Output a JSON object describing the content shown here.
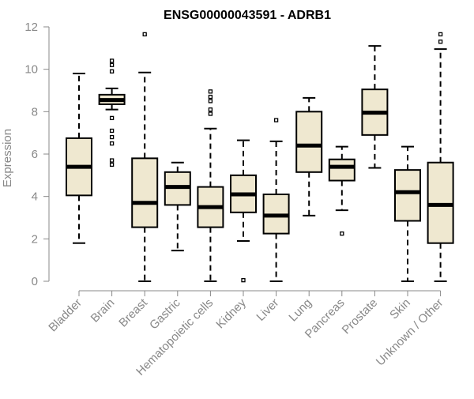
{
  "chart_data": {
    "type": "box",
    "title": "ENSG00000043591 - ADRB1",
    "xlabel": "",
    "ylabel": "Expression",
    "ylim": [
      0,
      12
    ],
    "yticks": [
      0,
      2,
      4,
      6,
      8,
      10,
      12
    ],
    "ytick_labels": [
      "0",
      "2",
      "4",
      "6",
      "8",
      "10",
      "12"
    ],
    "categories": [
      "Bladder",
      "Brain",
      "Breast",
      "Gastric",
      "Hematopoietic cells",
      "Kidney",
      "Liver",
      "Lung",
      "Pancreas",
      "Prostate",
      "Skin",
      "Unknown / Other"
    ],
    "boxes": [
      {
        "name": "Bladder",
        "min": 1.8,
        "q1": 4.05,
        "median": 5.4,
        "q3": 6.75,
        "max": 9.8,
        "outliers": []
      },
      {
        "name": "Brain",
        "min": 8.1,
        "q1": 8.35,
        "median": 8.55,
        "q3": 8.8,
        "max": 9.1,
        "outliers": [
          10.4,
          10.2,
          9.9,
          7.7,
          7.1,
          6.8,
          6.5,
          5.7,
          5.5
        ]
      },
      {
        "name": "Breast",
        "min": 0.0,
        "q1": 2.55,
        "median": 3.7,
        "q3": 5.8,
        "max": 9.85,
        "outliers": [
          11.65
        ]
      },
      {
        "name": "Gastric",
        "min": 1.45,
        "q1": 3.6,
        "median": 4.45,
        "q3": 5.15,
        "max": 5.6,
        "outliers": []
      },
      {
        "name": "Hematopoietic cells",
        "min": 0.0,
        "q1": 2.55,
        "median": 3.5,
        "q3": 4.45,
        "max": 7.2,
        "outliers": [
          8.95,
          8.7,
          8.5,
          8.1,
          7.9
        ]
      },
      {
        "name": "Kidney",
        "min": 1.9,
        "q1": 3.25,
        "median": 4.1,
        "q3": 5.0,
        "max": 6.65,
        "outliers": [
          0.05
        ]
      },
      {
        "name": "Liver",
        "min": 0.0,
        "q1": 2.25,
        "median": 3.1,
        "q3": 4.1,
        "max": 6.6,
        "outliers": [
          7.6
        ]
      },
      {
        "name": "Lung",
        "min": 3.1,
        "q1": 5.15,
        "median": 6.4,
        "q3": 8.0,
        "max": 8.65,
        "outliers": []
      },
      {
        "name": "Pancreas",
        "min": 3.35,
        "q1": 4.75,
        "median": 5.4,
        "q3": 5.75,
        "max": 6.35,
        "outliers": [
          2.25
        ]
      },
      {
        "name": "Prostate",
        "min": 5.35,
        "q1": 6.9,
        "median": 7.95,
        "q3": 9.05,
        "max": 11.1,
        "outliers": []
      },
      {
        "name": "Skin",
        "min": 0.0,
        "q1": 2.85,
        "median": 4.2,
        "q3": 5.25,
        "max": 6.35,
        "outliers": []
      },
      {
        "name": "Unknown / Other",
        "min": 0.0,
        "q1": 1.8,
        "median": 3.6,
        "q3": 5.6,
        "max": 10.95,
        "outliers": [
          11.65,
          11.3
        ]
      }
    ],
    "box_fill": "#efe8d0",
    "box_stroke": "#000000",
    "axis_color": "#888888",
    "label_color": "#888888",
    "grid": false,
    "legend": "none"
  }
}
